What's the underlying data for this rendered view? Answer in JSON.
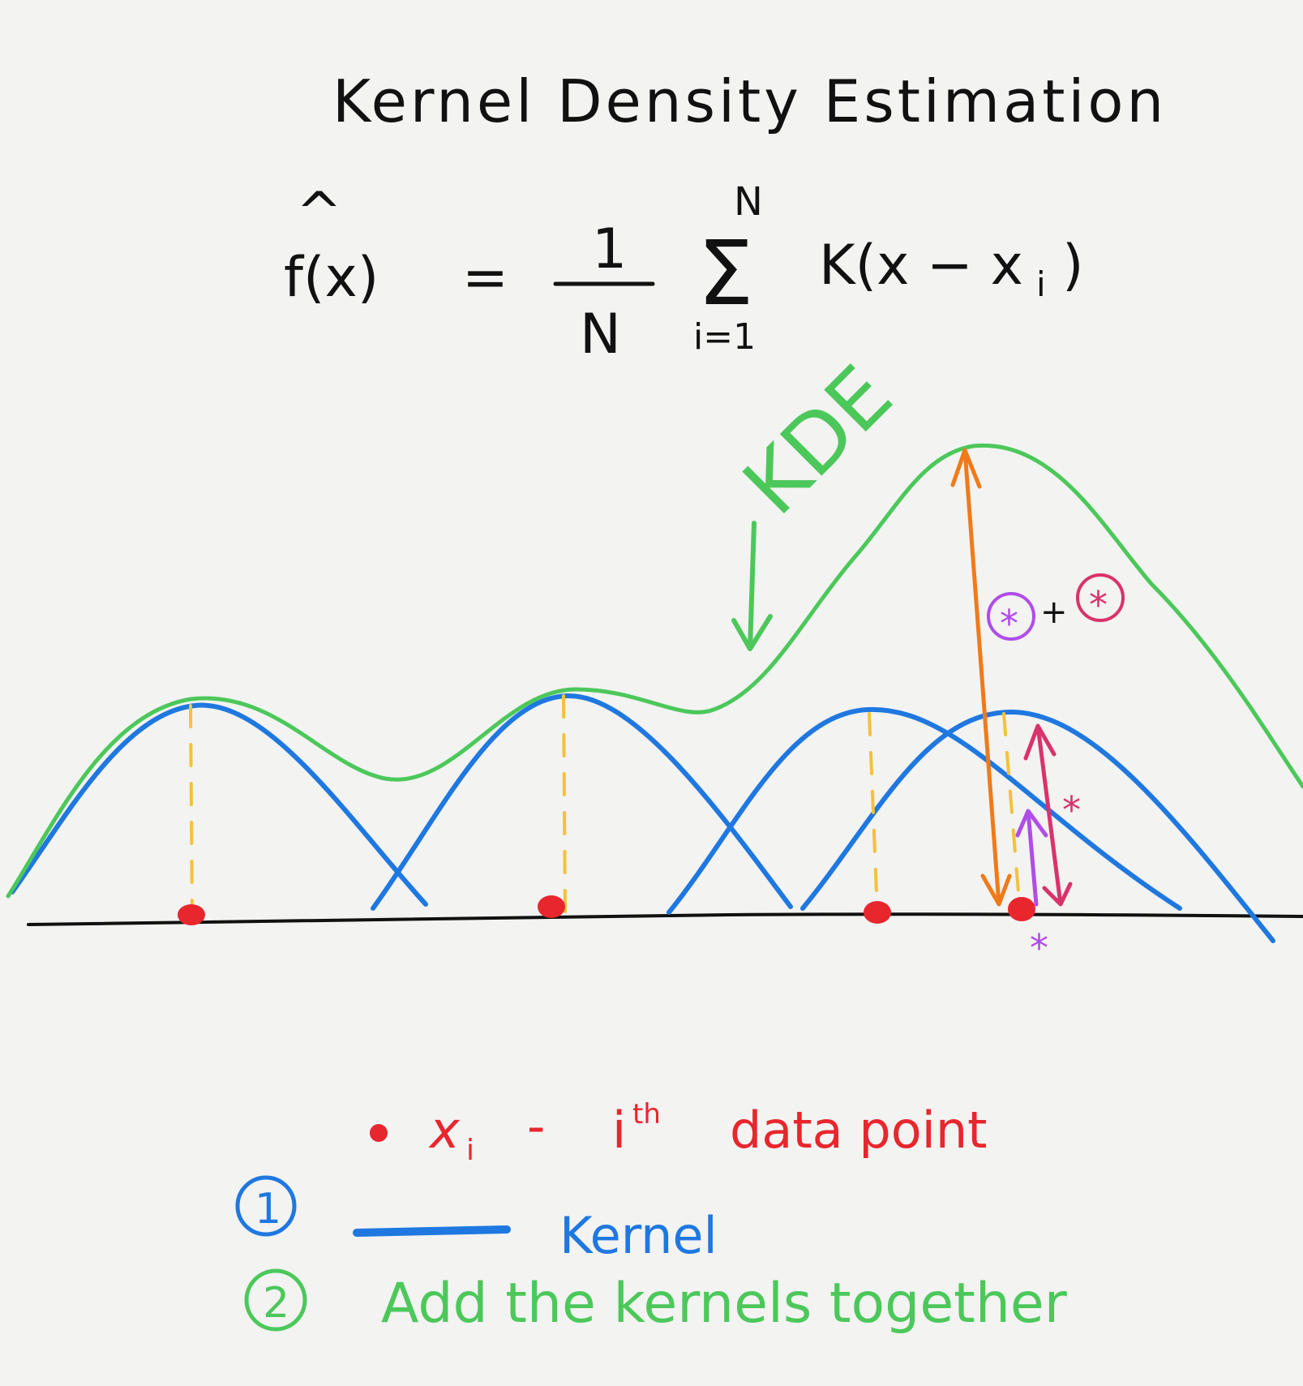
{
  "title": "Kernel Density Estimation",
  "formula": {
    "lhs": "f(x)",
    "hat": "^",
    "equals": "=",
    "numerator": "1",
    "denominator": "N",
    "sum_upper": "N",
    "sum_lower": "i=1",
    "sigma": "Σ",
    "term": "K(x − x",
    "subscript": "i",
    "close": ")"
  },
  "kde_label": "KDE",
  "annotations": {
    "plus": "+",
    "star_1": "*",
    "star_2": "*"
  },
  "legend": {
    "data_point_symbol": "x",
    "data_point_subscript": "i",
    "data_point_dash": "-",
    "data_point_i": "i",
    "data_point_superscript": "th",
    "data_point_text": "data point",
    "step_1_number": "1",
    "kernel_label": "Kernel",
    "step_2_number": "2",
    "step_2_text": "Add the kernels together"
  },
  "colors": {
    "axis": "#111111",
    "kernel": "#1f78e0",
    "kde": "#4cc85a",
    "data_point": "#e8262d",
    "guide": "#f5c13a",
    "height_arrow": "#f07a1a",
    "kernel_height_a": "#b04de8",
    "kernel_height_b": "#d9336b"
  },
  "chart_data": {
    "type": "diagram",
    "data_points": [
      1.0,
      3.1,
      4.9,
      5.8
    ],
    "kernel_shape": "triangular-ish bell"
  }
}
